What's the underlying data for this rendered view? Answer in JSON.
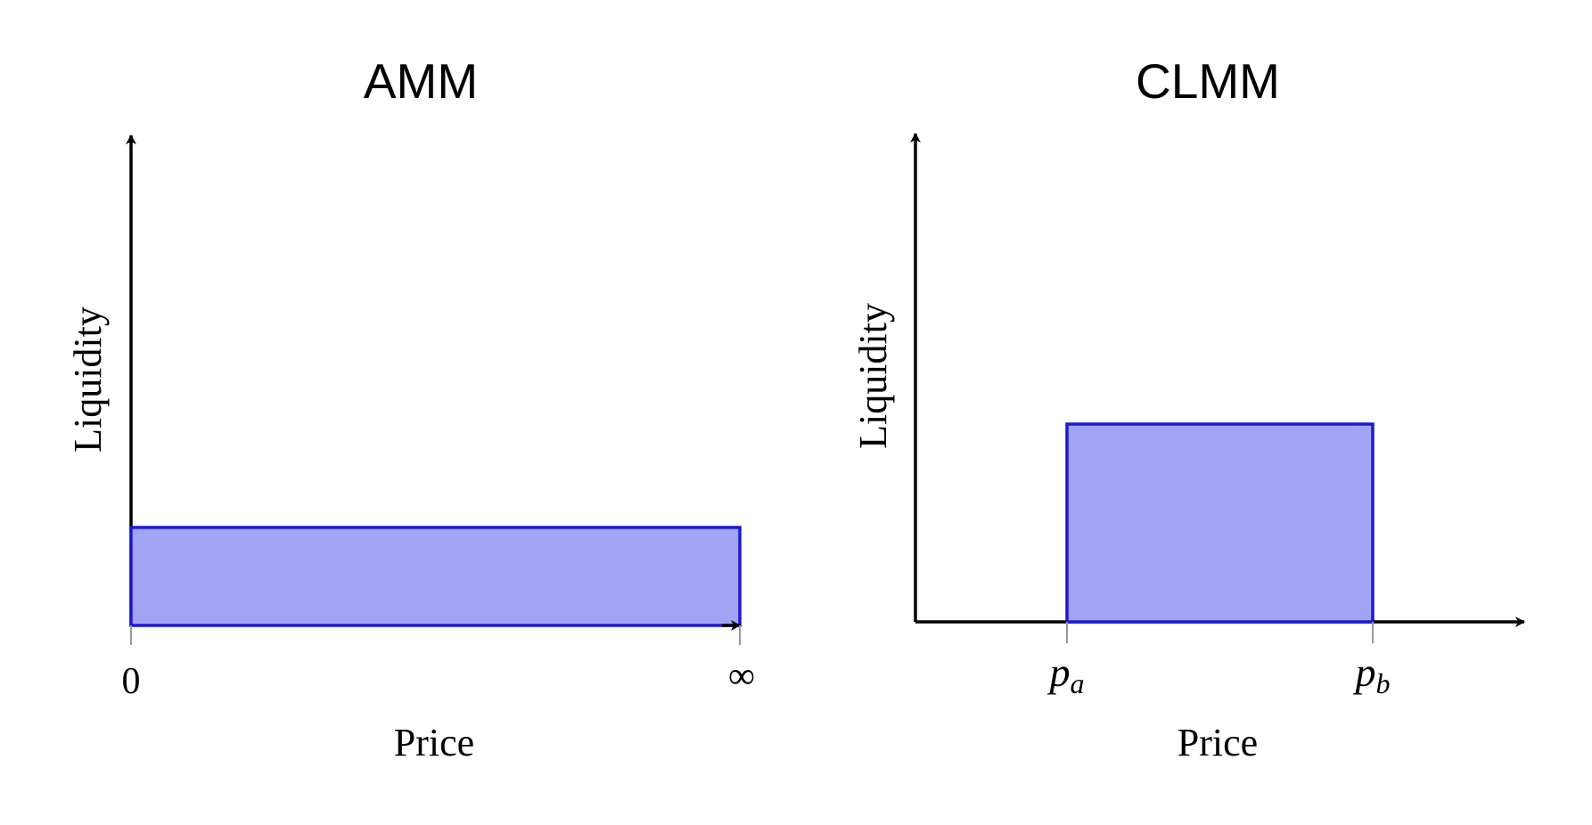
{
  "panels": [
    {
      "title": "AMM",
      "y_label": "Liquidity",
      "x_label": "Price",
      "ticks": [
        "0",
        "∞"
      ]
    },
    {
      "title": "CLMM",
      "y_label": "Liquidity",
      "x_label": "Price",
      "ticks": [
        {
          "base": "p",
          "sub": "a"
        },
        {
          "base": "p",
          "sub": "b"
        }
      ]
    }
  ]
}
